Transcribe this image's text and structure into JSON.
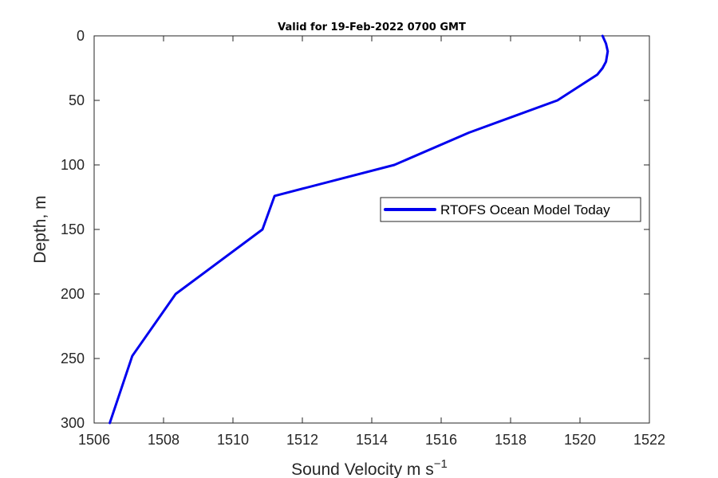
{
  "chart_data": {
    "type": "line",
    "title": "Valid for 19-Feb-2022 0700 GMT",
    "xlabel_main": "Sound Velocity m s",
    "xlabel_sup": "−1",
    "ylabel": "Depth, m",
    "xlim": [
      1506,
      1522
    ],
    "ylim": [
      0,
      300
    ],
    "y_reversed": true,
    "x_ticks": [
      "1506",
      "1508",
      "1510",
      "1512",
      "1514",
      "1516",
      "1518",
      "1520",
      "1522"
    ],
    "y_ticks": [
      "0",
      "50",
      "100",
      "150",
      "200",
      "250",
      "300"
    ],
    "grid": false,
    "legend_position": "center-right",
    "series": [
      {
        "name": "RTOFS Ocean Model Today",
        "color": "#0000ee",
        "x": [
          1520.65,
          1520.75,
          1520.8,
          1520.75,
          1520.65,
          1520.5,
          1519.35,
          1516.8,
          1514.65,
          1511.2,
          1510.85,
          1508.35,
          1507.1,
          1506.45
        ],
        "y": [
          0,
          6,
          12,
          20,
          25,
          30,
          50,
          75,
          100,
          124,
          150,
          200,
          248,
          300
        ]
      }
    ]
  }
}
